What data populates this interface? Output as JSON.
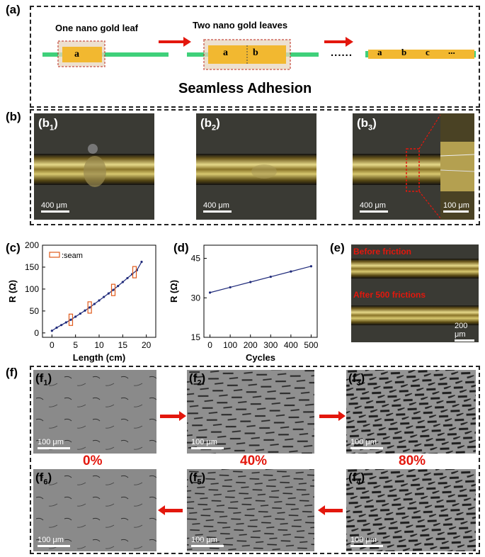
{
  "panel_a": {
    "label": "(a)",
    "step1_title": "One nano gold leaf",
    "step2_title": "Two nano gold leaves",
    "ellipsis": "......",
    "leaf_labels_1": [
      "a"
    ],
    "leaf_labels_2": [
      "a",
      "b"
    ],
    "leaf_labels_3": [
      "a",
      "b",
      "c",
      "..."
    ],
    "caption": "Seamless Adhesion",
    "colors": {
      "fiber": "#3fd07a",
      "gold": "#f2b830",
      "arrow": "#e3170d"
    }
  },
  "panel_b": {
    "label": "(b)",
    "images": [
      {
        "label_main": "(b",
        "label_sub": "1",
        "label_end": ")",
        "scale": "400 μm"
      },
      {
        "label_main": "(b",
        "label_sub": "2",
        "label_end": ")",
        "scale": "400 μm"
      },
      {
        "label_main": "(b",
        "label_sub": "3",
        "label_end": ")",
        "scale": "400 μm"
      }
    ],
    "inset_scale": "100 μm"
  },
  "panel_c": {
    "label": "(c)"
  },
  "panel_d": {
    "label": "(d)"
  },
  "panel_e": {
    "label": "(e)",
    "before": "Before friction",
    "after": "After 500 frictions",
    "scale": "200 μm"
  },
  "panel_f": {
    "label": "(f)",
    "images": [
      {
        "label_main": "(f",
        "label_sub": "1",
        "label_end": ")",
        "scale": "100 μm"
      },
      {
        "label_main": "(f",
        "label_sub": "2",
        "label_end": ")",
        "scale": "100 μm"
      },
      {
        "label_main": "(f",
        "label_sub": "3",
        "label_end": ")",
        "scale": "100 μm"
      },
      {
        "label_main": "(f",
        "label_sub": "6",
        "label_end": ")",
        "scale": "100 μm"
      },
      {
        "label_main": "(f",
        "label_sub": "5",
        "label_end": ")",
        "scale": "100 μm"
      },
      {
        "label_main": "(f",
        "label_sub": "4",
        "label_end": ")",
        "scale": "100 μm"
      }
    ],
    "strains": [
      "0%",
      "40%",
      "80%"
    ]
  },
  "chart_data": [
    {
      "type": "line",
      "xlabel": "Length (cm)",
      "ylabel": "R (Ω)",
      "xlim": [
        -2,
        22
      ],
      "ylim": [
        -10,
        200
      ],
      "xticks": [
        0,
        5,
        10,
        15,
        20
      ],
      "yticks": [
        0,
        50,
        100,
        150,
        200
      ],
      "x": [
        0,
        1,
        2,
        3,
        4,
        5,
        6,
        7,
        8,
        9,
        10,
        11,
        12,
        13,
        14,
        15,
        16,
        17,
        18,
        19
      ],
      "series": [
        {
          "values": [
            5,
            12,
            18,
            24,
            30,
            37,
            44,
            51,
            58,
            66,
            74,
            82,
            90,
            98,
            107,
            116,
            125,
            134,
            143,
            162
          ]
        }
      ],
      "legend": {
        "entries": [
          ":seam"
        ],
        "position": "top-left"
      },
      "seam_x": [
        4,
        8,
        13,
        17.5
      ]
    },
    {
      "type": "line",
      "xlabel": "Cycles",
      "ylabel": "R (Ω)",
      "xlim": [
        -30,
        530
      ],
      "ylim": [
        15,
        50
      ],
      "xticks": [
        0,
        100,
        200,
        300,
        400,
        500
      ],
      "yticks": [
        15,
        30,
        45
      ],
      "x": [
        0,
        100,
        200,
        300,
        400,
        500
      ],
      "series": [
        {
          "values": [
            32,
            34,
            36,
            38,
            40,
            42
          ]
        }
      ]
    }
  ]
}
